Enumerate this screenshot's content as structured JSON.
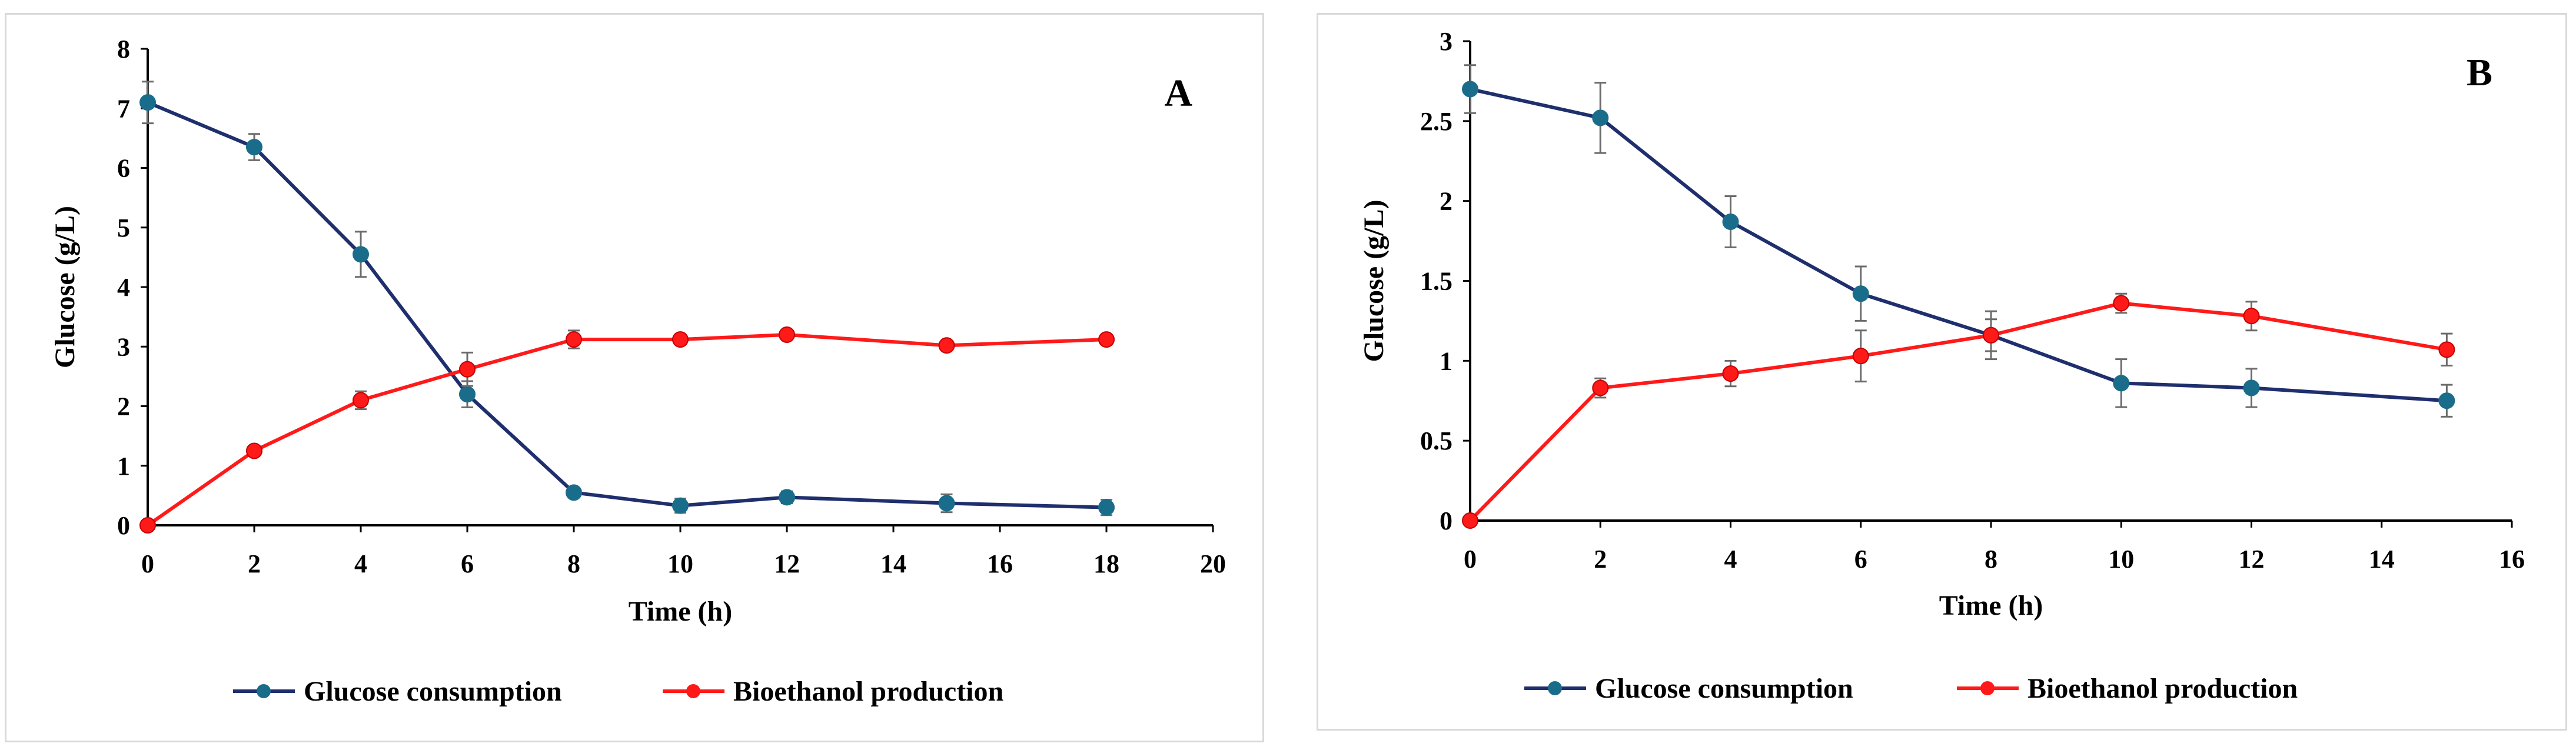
{
  "colors": {
    "glucose": "#1f2f6e",
    "glucose_marker": "#1a6d8a",
    "bioethanol": "#ff1a1a",
    "error_bar": "#6b6b6b",
    "axis": "#000000"
  },
  "chart_data": [
    {
      "type": "line",
      "panel_label": "A",
      "xlabel": "Time (h)",
      "ylabel": "Glucose (g/L)",
      "xlim": [
        0,
        20
      ],
      "ylim": [
        0,
        8
      ],
      "x_ticks": [
        "0",
        "2",
        "4",
        "6",
        "8",
        "10",
        "12",
        "14",
        "16",
        "18",
        "20"
      ],
      "y_ticks": [
        "0",
        "1",
        "2",
        "3",
        "4",
        "5",
        "6",
        "7",
        "8"
      ],
      "grid": false,
      "legend_position": "bottom",
      "series": [
        {
          "name": "Glucose consumption",
          "x": [
            0,
            2,
            4,
            6,
            8,
            10,
            12,
            15,
            18
          ],
          "values": [
            7.1,
            6.35,
            4.55,
            2.2,
            0.55,
            0.33,
            0.47,
            0.37,
            0.3
          ],
          "errors": [
            0.35,
            0.22,
            0.38,
            0.22,
            0.08,
            0.12,
            0.1,
            0.15,
            0.13
          ]
        },
        {
          "name": "Bioethanol production",
          "x": [
            0,
            2,
            4,
            6,
            8,
            10,
            12,
            15,
            18
          ],
          "values": [
            0,
            1.25,
            2.1,
            2.62,
            3.12,
            3.12,
            3.2,
            3.02,
            3.12
          ],
          "errors": [
            0.02,
            0.08,
            0.15,
            0.28,
            0.15,
            0.05,
            0.07,
            0.07,
            0.07
          ]
        }
      ]
    },
    {
      "type": "line",
      "panel_label": "B",
      "xlabel": "Time (h)",
      "ylabel": "Glucose (g/L)",
      "xlim": [
        0,
        16
      ],
      "ylim": [
        0,
        3
      ],
      "x_ticks": [
        "0",
        "2",
        "4",
        "6",
        "8",
        "10",
        "12",
        "14",
        "16"
      ],
      "y_ticks": [
        "0",
        "0.5",
        "1",
        "1.5",
        "2",
        "2.5",
        "3"
      ],
      "grid": false,
      "legend_position": "bottom",
      "series": [
        {
          "name": "Glucose consumption",
          "x": [
            0,
            2,
            4,
            6,
            8,
            10,
            12,
            15
          ],
          "values": [
            2.7,
            2.52,
            1.87,
            1.42,
            1.16,
            0.86,
            0.83,
            0.75
          ],
          "errors": [
            0.15,
            0.22,
            0.16,
            0.17,
            0.15,
            0.15,
            0.12,
            0.1
          ]
        },
        {
          "name": "Bioethanol production",
          "x": [
            0,
            2,
            4,
            6,
            8,
            10,
            12,
            15
          ],
          "values": [
            0,
            0.83,
            0.92,
            1.03,
            1.16,
            1.36,
            1.28,
            1.07
          ],
          "errors": [
            0.02,
            0.06,
            0.08,
            0.16,
            0.1,
            0.06,
            0.09,
            0.1
          ]
        }
      ]
    }
  ]
}
